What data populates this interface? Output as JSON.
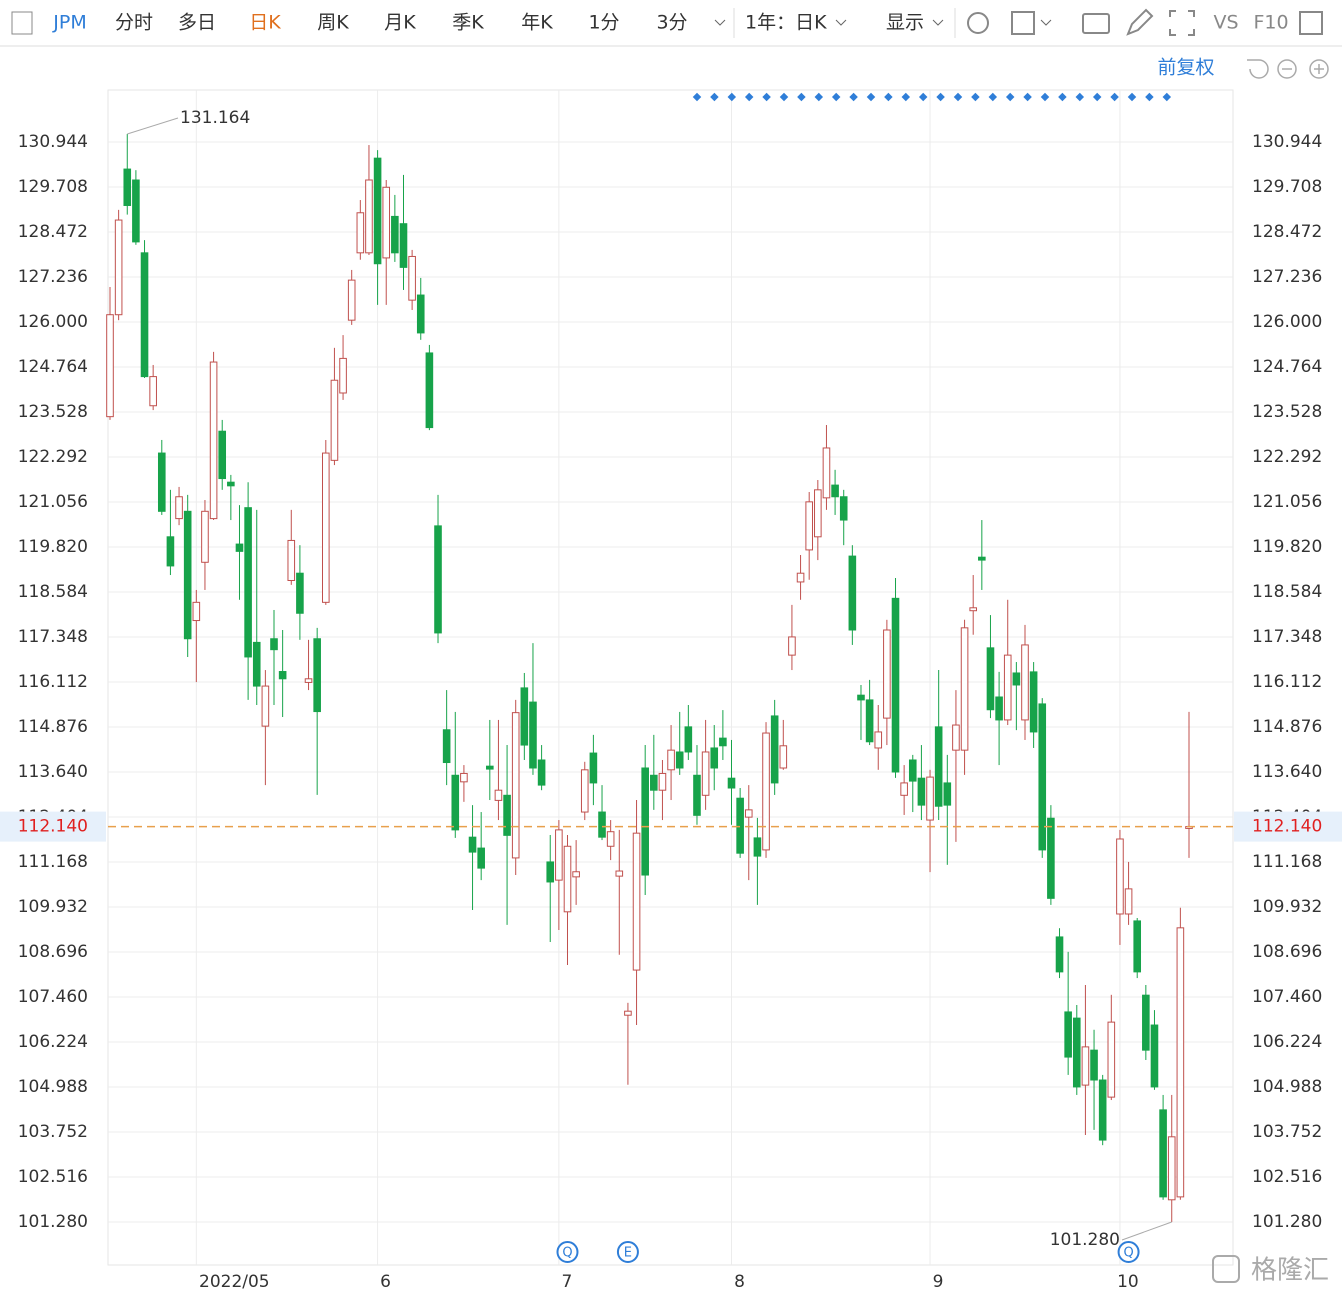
{
  "toolbar": {
    "symbol": "JPM",
    "tabs": [
      "分时",
      "多日",
      "日K",
      "周K",
      "月K",
      "季K",
      "年K",
      "1分",
      "3分"
    ],
    "range": "1年：日K",
    "display": "显示",
    "vs": "VS",
    "f10": "F10"
  },
  "adjust": "前复权",
  "watermark": "格隆汇",
  "chart_data": {
    "type": "candlestick",
    "up_color": "#c0504d",
    "down_color": "#17a34a",
    "ylim": [
      100.099,
      132.372
    ],
    "yticks": [
      {
        "value": 101.28,
        "label": "101.280"
      },
      102.516,
      103.752,
      104.988,
      106.224,
      {
        "value": 107.46,
        "label": "107.460"
      },
      108.696,
      109.932,
      111.168,
      112.404,
      {
        "value": 113.64,
        "label": "113.640"
      },
      114.876,
      116.112,
      117.348,
      118.584,
      {
        "value": 119.82,
        "label": "119.820"
      },
      121.056,
      122.292,
      123.528,
      124.764,
      {
        "value": 126,
        "label": "126.000"
      },
      127.236,
      128.472,
      129.708,
      130.944
    ],
    "xticks": [
      {
        "value": 10,
        "label": "2022/05"
      },
      {
        "value": 31,
        "label": "6"
      },
      {
        "value": 52,
        "label": "7"
      },
      {
        "value": 72,
        "label": "8"
      },
      {
        "value": 95,
        "label": "9"
      },
      {
        "value": 117,
        "label": "10"
      }
    ],
    "grid": true,
    "last_price": {
      "value": 112.14,
      "label": "112.140"
    },
    "high_label": 131.164,
    "low_label": {
      "value": 101.28,
      "label": "101.280"
    },
    "events": [
      {
        "x": 53,
        "label": "Q"
      },
      {
        "x": 60,
        "label": "E"
      },
      {
        "x": 118,
        "label": "Q"
      }
    ],
    "candles": [
      [
        123.4,
        126.96,
        123.31,
        126.2
      ],
      [
        126.2,
        129.08,
        126.05,
        128.8
      ],
      [
        130.2,
        131.164,
        128.95,
        129.2
      ],
      [
        129.9,
        130.17,
        128.12,
        128.2
      ],
      [
        127.9,
        128.25,
        124.46,
        124.5
      ],
      [
        123.7,
        124.82,
        123.58,
        124.5
      ],
      [
        122.4,
        122.76,
        120.7,
        120.8
      ],
      [
        120.1,
        121.39,
        119.05,
        119.3
      ],
      [
        120.6,
        121.47,
        120.42,
        121.2
      ],
      [
        120.8,
        121.25,
        116.8,
        117.3
      ],
      [
        117.8,
        118.64,
        116.11,
        118.3
      ],
      [
        119.4,
        121.11,
        118.64,
        120.8
      ],
      [
        120.6,
        125.18,
        120.56,
        124.9
      ],
      [
        123.0,
        123.31,
        121.39,
        121.7
      ],
      [
        121.6,
        121.8,
        120.56,
        121.5
      ],
      [
        119.9,
        120.97,
        118.37,
        119.7
      ],
      [
        120.9,
        121.6,
        115.62,
        116.8
      ],
      [
        117.2,
        120.84,
        115.48,
        116.0
      ],
      [
        114.9,
        116.44,
        113.28,
        116.0
      ],
      [
        117.3,
        118.09,
        115.48,
        117.0
      ],
      [
        116.4,
        117.54,
        115.15,
        116.2
      ],
      [
        118.9,
        120.84,
        118.78,
        120.0
      ],
      [
        119.1,
        119.87,
        117.27,
        118.0
      ],
      [
        116.1,
        117.27,
        115.89,
        116.2
      ],
      [
        117.3,
        117.6,
        113.01,
        115.3
      ],
      [
        118.3,
        122.76,
        118.23,
        122.4
      ],
      [
        122.2,
        125.29,
        122.07,
        124.4
      ],
      [
        124.05,
        125.64,
        123.86,
        125.0
      ],
      [
        126.05,
        127.43,
        125.92,
        127.15
      ],
      [
        127.9,
        129.35,
        127.71,
        129.0
      ],
      [
        127.9,
        130.86,
        127.84,
        129.9
      ],
      [
        130.5,
        130.72,
        126.47,
        127.6
      ],
      [
        127.76,
        129.9,
        126.47,
        129.7
      ],
      [
        128.9,
        129.49,
        127.65,
        127.9
      ],
      [
        128.7,
        130.04,
        126.88,
        127.5
      ],
      [
        126.6,
        127.98,
        126.33,
        127.8
      ],
      [
        126.74,
        127.21,
        125.51,
        125.7
      ],
      [
        125.15,
        125.37,
        123.03,
        123.1
      ],
      [
        120.4,
        121.25,
        117.18,
        117.46
      ],
      [
        114.8,
        115.89,
        113.28,
        113.9
      ],
      [
        113.55,
        115.29,
        111.83,
        112.05
      ],
      [
        113.37,
        113.83,
        112.82,
        113.6
      ],
      [
        111.85,
        112.73,
        109.85,
        111.44
      ],
      [
        111.55,
        112.54,
        110.67,
        111.0
      ],
      [
        113.8,
        115.07,
        112.87,
        113.72
      ],
      [
        112.86,
        115.07,
        112.32,
        113.14
      ],
      [
        113.0,
        114.38,
        109.44,
        111.9
      ],
      [
        111.28,
        115.62,
        110.81,
        115.27
      ],
      [
        115.95,
        116.36,
        113.97,
        114.38
      ],
      [
        115.56,
        117.18,
        113.56,
        113.75
      ],
      [
        113.97,
        114.38,
        113.14,
        113.28
      ],
      [
        111.17,
        111.91,
        108.97,
        110.62
      ],
      [
        110.67,
        112.32,
        109.3,
        112.05
      ],
      [
        109.8,
        111.91,
        108.34,
        111.6
      ],
      [
        110.76,
        111.77,
        109.99,
        110.9
      ],
      [
        112.54,
        113.92,
        112.32,
        113.7
      ],
      [
        114.16,
        114.66,
        112.73,
        113.34
      ],
      [
        112.54,
        113.28,
        111.77,
        111.85
      ],
      [
        111.6,
        112.32,
        111.22,
        112.0
      ],
      [
        110.78,
        112.05,
        108.62,
        110.92
      ],
      [
        106.96,
        107.3,
        105.05,
        107.07
      ],
      [
        108.2,
        112.87,
        106.69,
        111.96
      ],
      [
        113.75,
        114.38,
        110.26,
        110.81
      ],
      [
        113.55,
        114.66,
        112.6,
        113.14
      ],
      [
        113.14,
        113.97,
        112.32,
        113.6
      ],
      [
        113.7,
        114.93,
        112.87,
        114.24
      ],
      [
        114.19,
        115.29,
        113.56,
        113.75
      ],
      [
        114.88,
        115.48,
        113.97,
        114.19
      ],
      [
        113.55,
        114.38,
        112.19,
        112.45
      ],
      [
        113.0,
        115.07,
        112.6,
        114.19
      ],
      [
        114.3,
        114.93,
        113.14,
        113.75
      ],
      [
        114.57,
        115.34,
        113.97,
        114.36
      ],
      [
        113.47,
        114.52,
        112.19,
        113.2
      ],
      [
        112.92,
        113.2,
        111.28,
        111.41
      ],
      [
        112.4,
        113.28,
        110.67,
        112.6
      ],
      [
        111.83,
        112.38,
        109.99,
        111.33
      ],
      [
        111.5,
        115.01,
        111.28,
        114.71
      ],
      [
        115.18,
        115.62,
        113.01,
        113.34
      ],
      [
        113.75,
        115.07,
        113.7,
        114.36
      ],
      [
        116.85,
        118.23,
        116.44,
        117.35
      ],
      [
        118.86,
        119.6,
        118.37,
        119.1
      ],
      [
        119.74,
        121.33,
        118.92,
        121.06
      ],
      [
        120.1,
        121.66,
        119.46,
        121.39
      ],
      [
        121.17,
        123.17,
        120.84,
        122.54
      ],
      [
        121.52,
        121.94,
        120.7,
        121.2
      ],
      [
        121.2,
        121.39,
        119.87,
        120.56
      ],
      [
        119.57,
        119.87,
        117.13,
        117.54
      ],
      [
        115.75,
        116.03,
        114.52,
        115.62
      ],
      [
        115.62,
        116.17,
        114.38,
        114.47
      ],
      [
        114.3,
        115.48,
        113.7,
        114.74
      ],
      [
        115.12,
        117.82,
        114.38,
        117.54
      ],
      [
        118.41,
        118.97,
        113.48,
        113.64
      ],
      [
        113.0,
        113.83,
        112.46,
        113.34
      ],
      [
        113.97,
        114.11,
        112.54,
        113.39
      ],
      [
        113.47,
        114.38,
        112.32,
        112.73
      ],
      [
        112.32,
        113.7,
        110.89,
        113.5
      ],
      [
        114.88,
        116.44,
        112.32,
        112.7
      ],
      [
        113.34,
        114.11,
        111.09,
        112.73
      ],
      [
        114.24,
        115.89,
        111.72,
        114.93
      ],
      [
        114.24,
        117.82,
        113.56,
        117.6
      ],
      [
        118.07,
        119.05,
        117.41,
        118.15
      ],
      [
        119.54,
        120.56,
        118.64,
        119.46
      ],
      [
        117.05,
        117.95,
        115.12,
        115.35
      ],
      [
        115.7,
        116.39,
        113.83,
        115.07
      ],
      [
        115.07,
        118.37,
        114.93,
        116.85
      ],
      [
        116.36,
        116.66,
        114.79,
        116.03
      ],
      [
        115.07,
        117.68,
        114.52,
        117.13
      ],
      [
        116.39,
        116.66,
        114.3,
        114.74
      ],
      [
        115.51,
        115.67,
        111.28,
        111.5
      ],
      [
        112.37,
        112.73,
        109.99,
        110.17
      ],
      [
        109.11,
        109.35,
        107.98,
        108.15
      ],
      [
        107.05,
        108.7,
        105.32,
        105.81
      ],
      [
        106.88,
        107.24,
        104.77,
        104.99
      ],
      [
        105.04,
        107.79,
        103.67,
        106.09
      ],
      [
        106.0,
        106.56,
        103.81,
        105.18
      ],
      [
        105.18,
        105.32,
        103.39,
        103.53
      ],
      [
        104.71,
        107.52,
        104.63,
        106.77
      ],
      [
        109.74,
        112.05,
        108.89,
        111.8
      ],
      [
        109.74,
        111.17,
        109.44,
        110.43
      ],
      [
        109.55,
        109.63,
        107.98,
        108.15
      ],
      [
        107.51,
        107.79,
        105.73,
        106.0
      ],
      [
        106.69,
        107.1,
        104.91,
        104.99
      ],
      [
        104.36,
        104.77,
        101.89,
        101.97
      ],
      [
        101.89,
        104.77,
        101.28,
        103.62
      ],
      [
        101.97,
        109.91,
        101.89,
        109.36
      ],
      [
        112.09,
        115.29,
        111.28,
        112.14
      ]
    ]
  }
}
